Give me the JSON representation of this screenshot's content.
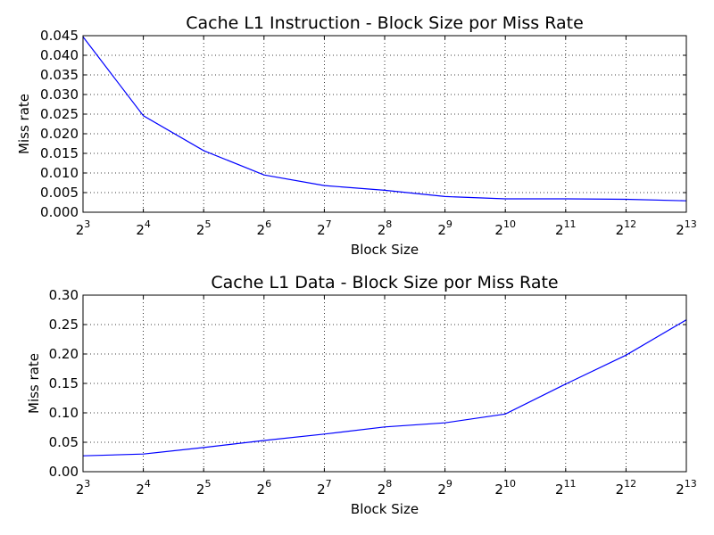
{
  "chart_data": [
    {
      "type": "line",
      "title": "Cache L1 Instruction - Block Size por Miss Rate",
      "xlabel": "Block Size",
      "ylabel": "Miss rate",
      "xscale": "log2",
      "x": [
        8,
        16,
        32,
        64,
        128,
        256,
        512,
        1024,
        2048,
        4096,
        8192
      ],
      "xtick_labels": [
        {
          "base": "2",
          "exp": "3"
        },
        {
          "base": "2",
          "exp": "4"
        },
        {
          "base": "2",
          "exp": "5"
        },
        {
          "base": "2",
          "exp": "6"
        },
        {
          "base": "2",
          "exp": "7"
        },
        {
          "base": "2",
          "exp": "8"
        },
        {
          "base": "2",
          "exp": "9"
        },
        {
          "base": "2",
          "exp": "10"
        },
        {
          "base": "2",
          "exp": "11"
        },
        {
          "base": "2",
          "exp": "12"
        },
        {
          "base": "2",
          "exp": "13"
        }
      ],
      "yticks": [
        0,
        0.005,
        0.01,
        0.015,
        0.02,
        0.025,
        0.03,
        0.035,
        0.04,
        0.045
      ],
      "ytick_labels": [
        "0.000",
        "0.005",
        "0.010",
        "0.015",
        "0.020",
        "0.025",
        "0.030",
        "0.035",
        "0.040",
        "0.045"
      ],
      "ylim": [
        0,
        0.045
      ],
      "grid": true,
      "series": [
        {
          "color": "#0000ff",
          "values": [
            0.0447,
            0.0246,
            0.0157,
            0.0095,
            0.0068,
            0.0056,
            0.004,
            0.0034,
            0.0034,
            0.0033,
            0.0029
          ]
        }
      ]
    },
    {
      "type": "line",
      "title": "Cache L1 Data - Block Size por Miss Rate",
      "xlabel": "Block Size",
      "ylabel": "Miss rate",
      "xscale": "log2",
      "x": [
        8,
        16,
        32,
        64,
        128,
        256,
        512,
        1024,
        2048,
        4096,
        8192
      ],
      "xtick_labels": [
        {
          "base": "2",
          "exp": "3"
        },
        {
          "base": "2",
          "exp": "4"
        },
        {
          "base": "2",
          "exp": "5"
        },
        {
          "base": "2",
          "exp": "6"
        },
        {
          "base": "2",
          "exp": "7"
        },
        {
          "base": "2",
          "exp": "8"
        },
        {
          "base": "2",
          "exp": "9"
        },
        {
          "base": "2",
          "exp": "10"
        },
        {
          "base": "2",
          "exp": "11"
        },
        {
          "base": "2",
          "exp": "12"
        },
        {
          "base": "2",
          "exp": "13"
        }
      ],
      "yticks": [
        0,
        0.05,
        0.1,
        0.15,
        0.2,
        0.25,
        0.3
      ],
      "ytick_labels": [
        "0.00",
        "0.05",
        "0.10",
        "0.15",
        "0.20",
        "0.25",
        "0.30"
      ],
      "ylim": [
        0,
        0.3
      ],
      "grid": true,
      "series": [
        {
          "color": "#0000ff",
          "values": [
            0.027,
            0.03,
            0.041,
            0.053,
            0.064,
            0.076,
            0.083,
            0.098,
            0.149,
            0.198,
            0.258
          ]
        }
      ]
    }
  ]
}
